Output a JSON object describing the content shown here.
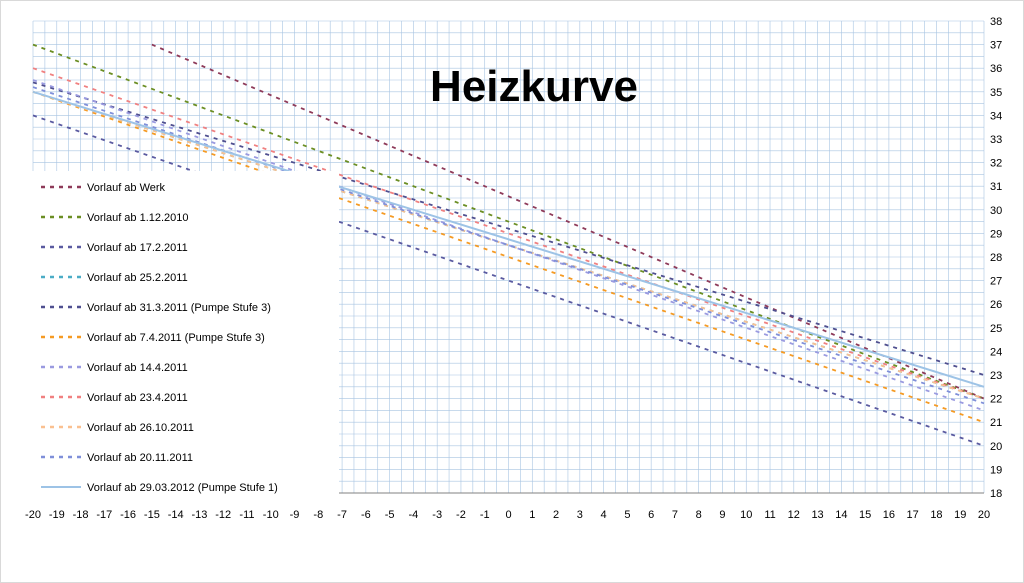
{
  "chart_data": {
    "type": "line",
    "title": "Heizkurve",
    "xlabel": "",
    "ylabel": "",
    "x_range": [
      -20,
      20
    ],
    "y_range": [
      18,
      38
    ],
    "x_ticks": [
      "-20",
      "-19",
      "-18",
      "-17",
      "-16",
      "-15",
      "-14",
      "-13",
      "-12",
      "-11",
      "-10",
      "-9",
      "-8",
      "-7",
      "-6",
      "-5",
      "-4",
      "-3",
      "-2",
      "-1",
      "0",
      "1",
      "2",
      "3",
      "4",
      "5",
      "6",
      "7",
      "8",
      "9",
      "10",
      "11",
      "12",
      "13",
      "14",
      "15",
      "16",
      "17",
      "18",
      "19",
      "20"
    ],
    "y_ticks": [
      "18",
      "19",
      "20",
      "21",
      "22",
      "23",
      "24",
      "25",
      "26",
      "27",
      "28",
      "29",
      "30",
      "31",
      "32",
      "33",
      "34",
      "35",
      "36",
      "37",
      "38"
    ],
    "y_axis_side": "right",
    "grid": true,
    "legend_position": "left",
    "series": [
      {
        "name": "Vorlauf ab Werk",
        "color": "#8e3a59",
        "style": "dashed",
        "x": [
          -15,
          20
        ],
        "values": [
          37,
          22
        ]
      },
      {
        "name": "Vorlauf ab 1.12.2010",
        "color": "#6b8e23",
        "style": "dashed",
        "x": [
          -20,
          20
        ],
        "values": [
          37,
          22
        ]
      },
      {
        "name": "Vorlauf ab 17.2.2011",
        "color": "#5a5aa0",
        "style": "dashed",
        "x": [
          -20,
          20
        ],
        "values": [
          34,
          20
        ]
      },
      {
        "name": "Vorlauf ab 25.2.2011",
        "color": "#4bacc6",
        "style": "dashed",
        "x": [
          -20,
          20
        ],
        "values": [
          35,
          22
        ]
      },
      {
        "name": "Vorlauf ab 31.3.2011 (Pumpe Stufe 3)",
        "color": "#4f4f8f",
        "style": "dashed",
        "x": [
          -20,
          20
        ],
        "values": [
          35.4,
          23
        ]
      },
      {
        "name": "Vorlauf ab 7.4.2011 (Pumpe Stufe 3)",
        "color": "#f59a23",
        "style": "dashed",
        "x": [
          -20,
          20
        ],
        "values": [
          35,
          21
        ]
      },
      {
        "name": "Vorlauf ab 14.4.2011",
        "color": "#9a9ae0",
        "style": "dashed",
        "x": [
          -20,
          20
        ],
        "values": [
          35.5,
          21.5
        ]
      },
      {
        "name": "Vorlauf ab 23.4.2011",
        "color": "#f08080",
        "style": "dashed",
        "x": [
          -20,
          20
        ],
        "values": [
          36,
          22
        ]
      },
      {
        "name": "Vorlauf ab 26.10.2011",
        "color": "#fac090",
        "style": "dashed",
        "x": [
          -20,
          20
        ],
        "values": [
          35,
          22
        ]
      },
      {
        "name": "Vorlauf ab 20.11.2011",
        "color": "#7f8fd9",
        "style": "dashed",
        "x": [
          -20,
          20
        ],
        "values": [
          35.2,
          21.8
        ]
      },
      {
        "name": "Vorlauf ab 29.03.2012 (Pumpe Stufe 1)",
        "color": "#9dc3e6",
        "style": "solid",
        "x": [
          -20,
          20
        ],
        "values": [
          35,
          22.5
        ]
      }
    ]
  }
}
